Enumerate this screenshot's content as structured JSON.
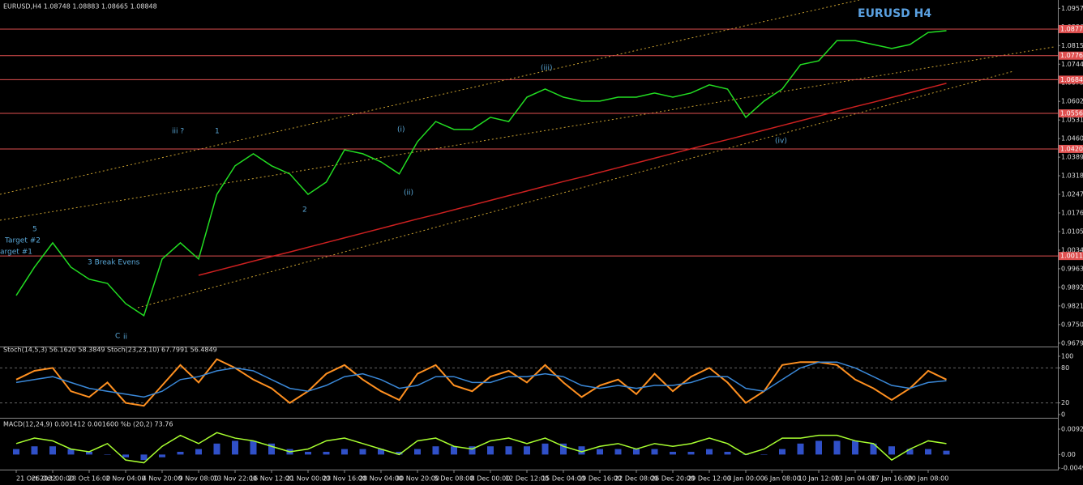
{
  "chart_data": [
    {
      "type": "line",
      "title": "EURUSD H4",
      "header": "EURUSD,H4  1.08748 1.08883 1.08665 1.08848",
      "ylim": [
        0.9666,
        1.0989
      ],
      "yticks": [
        {
          "value": 0.9679,
          "label": "0.96790"
        },
        {
          "value": 0.975,
          "label": "0.97500"
        },
        {
          "value": 0.9821,
          "label": "0.98210"
        },
        {
          "value": 0.9892,
          "label": "0.98920"
        },
        {
          "value": 0.9963,
          "label": "0.99630"
        },
        {
          "value": 1.0034,
          "label": "1.00340"
        },
        {
          "value": 1.0105,
          "label": "1.01050"
        },
        {
          "value": 1.0176,
          "label": "1.01760"
        },
        {
          "value": 1.0247,
          "label": "1.02470"
        },
        {
          "value": 1.0318,
          "label": "1.03180"
        },
        {
          "value": 1.0389,
          "label": "1.03890"
        },
        {
          "value": 1.046,
          "label": "1.04600"
        },
        {
          "value": 1.0531,
          "label": "1.05310"
        },
        {
          "value": 1.0602,
          "label": "1.06020"
        },
        {
          "value": 1.0673,
          "label": "1.06730"
        },
        {
          "value": 1.0744,
          "label": "1.07440"
        },
        {
          "value": 1.0815,
          "label": "1.08150"
        },
        {
          "value": 1.0886,
          "label": "1.08860"
        },
        {
          "value": 1.0957,
          "label": "1.09570"
        }
      ],
      "levels": [
        1.08779,
        1.07765,
        1.06848,
        1.05561,
        1.04204,
        1.00118
      ],
      "level_color": "#e05050",
      "annotations": [
        "iii ?",
        "1",
        "(i)",
        "(ii)",
        "(iii)",
        "(iv)",
        "2",
        "Target #2",
        "arget #1",
        "3 Break Evens",
        "5",
        "C",
        "ii"
      ],
      "series": [
        {
          "color": "#22dd22",
          "values": [
            0.9861,
            0.9969,
            1.0062,
            0.9969,
            0.9923,
            0.9907,
            0.983,
            0.9784,
            1.0,
            1.0062,
            1.0,
            1.0247,
            1.0356,
            1.0402,
            1.0356,
            1.0325,
            1.0247,
            1.0294,
            1.0417,
            1.0402,
            1.0371,
            1.0325,
            1.0448,
            1.0525,
            1.0495,
            1.0495,
            1.0541,
            1.0525,
            1.0618,
            1.0649,
            1.0618,
            1.0603,
            1.0603,
            1.0618,
            1.0618,
            1.0634,
            1.0618,
            1.0634,
            1.0665,
            1.0649,
            1.0541,
            1.0603,
            1.0649,
            1.0742,
            1.0757,
            1.0834,
            1.0834,
            1.0819,
            1.0804,
            1.0819,
            1.0865,
            1.0872
          ]
        },
        {
          "color": "#cc2020",
          "values": [
            null,
            null,
            null,
            null,
            null,
            null,
            null,
            null,
            null,
            null,
            0.9938,
            0.9956,
            0.9974,
            0.9992,
            1.001,
            1.0027,
            1.0045,
            1.0063,
            1.0081,
            1.0099,
            1.0117,
            1.0135,
            1.0153,
            1.017,
            1.0188,
            1.0206,
            1.0224,
            1.0242,
            1.026,
            1.0278,
            1.0296,
            1.0313,
            1.0331,
            1.0349,
            1.0367,
            1.0385,
            1.0403,
            1.0421,
            1.0439,
            1.0456,
            1.0474,
            1.0492,
            1.051,
            1.0528,
            1.0546,
            1.0564,
            1.0582,
            1.0599,
            1.0617,
            1.0635,
            1.0653,
            1.0671
          ]
        }
      ]
    },
    {
      "type": "line",
      "title": "Stoch(14,5,3) 56.1620 58.3849  Stoch(23,23,10) 67.7991 56.4849",
      "ylim": [
        0,
        100
      ],
      "yticks": [
        0,
        20,
        80,
        100
      ],
      "series": [
        {
          "color": "#ff9020",
          "values": [
            60,
            75,
            80,
            40,
            30,
            55,
            20,
            15,
            50,
            85,
            55,
            95,
            80,
            60,
            45,
            20,
            40,
            70,
            85,
            60,
            40,
            25,
            70,
            85,
            50,
            40,
            65,
            75,
            55,
            85,
            55,
            30,
            50,
            60,
            35,
            70,
            40,
            65,
            80,
            55,
            20,
            40,
            85,
            90,
            90,
            85,
            60,
            45,
            25,
            45,
            75,
            60
          ]
        },
        {
          "color": "#3a88d8",
          "values": [
            55,
            60,
            65,
            55,
            45,
            40,
            35,
            30,
            40,
            60,
            65,
            75,
            80,
            75,
            60,
            45,
            40,
            50,
            65,
            70,
            60,
            45,
            50,
            65,
            65,
            55,
            55,
            65,
            65,
            70,
            65,
            50,
            45,
            50,
            45,
            50,
            50,
            55,
            65,
            65,
            45,
            40,
            60,
            80,
            90,
            90,
            80,
            65,
            50,
            45,
            55,
            58
          ]
        }
      ]
    },
    {
      "type": "line",
      "title": "MACD(12,24,9) 0.001412 0.001600  %b (20,2) 73.76",
      "ylim": [
        -0.004909,
        0.009269
      ],
      "yticks": [
        -0.004909,
        {
          "value": 0,
          "label": "0.00"
        },
        0.009269
      ],
      "categories": [
        "21 Oct 2022",
        null,
        "26 Oct 00:00",
        null,
        "28 Oct 16:00",
        null,
        "2 Nov 04:00",
        null,
        "4 Nov 20:00",
        null,
        "9 Nov 08:00",
        null,
        "13 Nov 22:00",
        null,
        "16 Nov 12:00",
        null,
        "21 Nov 00:00",
        null,
        "23 Nov 16:00",
        null,
        "28 Nov 04:00",
        null,
        "30 Nov 20:00",
        null,
        "5 Dec 08:00",
        null,
        "8 Dec 00:00",
        null,
        "12 Dec 12:00",
        null,
        "15 Dec 04:00",
        null,
        "19 Dec 16:00",
        null,
        "22 Dec 08:00",
        null,
        "26 Dec 20:00",
        null,
        "29 Dec 12:00",
        null,
        "3 Jan 00:00",
        null,
        "6 Jan 08:00",
        null,
        "10 Jan 12:00",
        null,
        "13 Jan 04:00",
        null,
        "17 Jan 16:00",
        null,
        "20 Jan 08:00",
        null
      ],
      "series": [
        {
          "kind": "bar",
          "color": "#3050c8",
          "values": [
            0.002,
            0.003,
            0.003,
            0.002,
            0.001,
            0.0,
            -0.001,
            -0.002,
            -0.001,
            0.001,
            0.002,
            0.004,
            0.005,
            0.005,
            0.004,
            0.002,
            0.001,
            0.001,
            0.002,
            0.002,
            0.002,
            0.001,
            0.002,
            0.003,
            0.003,
            0.003,
            0.003,
            0.003,
            0.003,
            0.004,
            0.004,
            0.003,
            0.002,
            0.002,
            0.002,
            0.002,
            0.001,
            0.001,
            0.002,
            0.001,
            0.0,
            0.0,
            0.002,
            0.004,
            0.005,
            0.005,
            0.005,
            0.004,
            0.003,
            0.002,
            0.002,
            0.0014
          ]
        },
        {
          "color": "#a8ff30",
          "values": [
            0.004,
            0.006,
            0.005,
            0.002,
            0.001,
            0.004,
            -0.002,
            -0.003,
            0.003,
            0.007,
            0.004,
            0.008,
            0.006,
            0.005,
            0.003,
            0.001,
            0.002,
            0.005,
            0.006,
            0.004,
            0.002,
            0.0,
            0.005,
            0.006,
            0.003,
            0.002,
            0.005,
            0.006,
            0.004,
            0.006,
            0.003,
            0.001,
            0.003,
            0.004,
            0.002,
            0.004,
            0.003,
            0.004,
            0.006,
            0.004,
            0.0,
            0.002,
            0.006,
            0.006,
            0.007,
            0.007,
            0.005,
            0.004,
            -0.002,
            0.002,
            0.005,
            0.004
          ]
        }
      ]
    }
  ]
}
